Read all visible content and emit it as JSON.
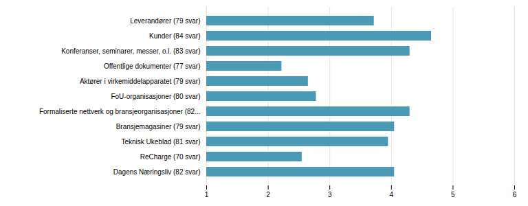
{
  "chart_data": {
    "type": "bar",
    "orientation": "horizontal",
    "categories": [
      "Dagens Næringsliv (82 svar)",
      "ReCharge (70 svar)",
      "Teknisk Ukeblad (81 svar)",
      "Bransjemagasiner (79 svar)",
      "Formaliserte nettverk og bransjeorganisasjoner (82...",
      "FoU-organisasjoner (80 svar)",
      "Aktører i virkemiddelapparatet (79 svar)",
      "Offentlige dokumenter (77 svar)",
      "Konferanser, seminarer, messer, o.l. (83 svar)",
      "Kunder (84 svar)",
      "Leverandører (79 svar)"
    ],
    "values": [
      4.05,
      2.55,
      3.95,
      4.05,
      4.3,
      2.78,
      2.65,
      2.22,
      4.3,
      4.65,
      3.72
    ],
    "color": "#4a9ab5",
    "xlim": [
      1,
      6
    ],
    "xticks": [
      1,
      2,
      3,
      4,
      5,
      6
    ],
    "grid": true
  }
}
